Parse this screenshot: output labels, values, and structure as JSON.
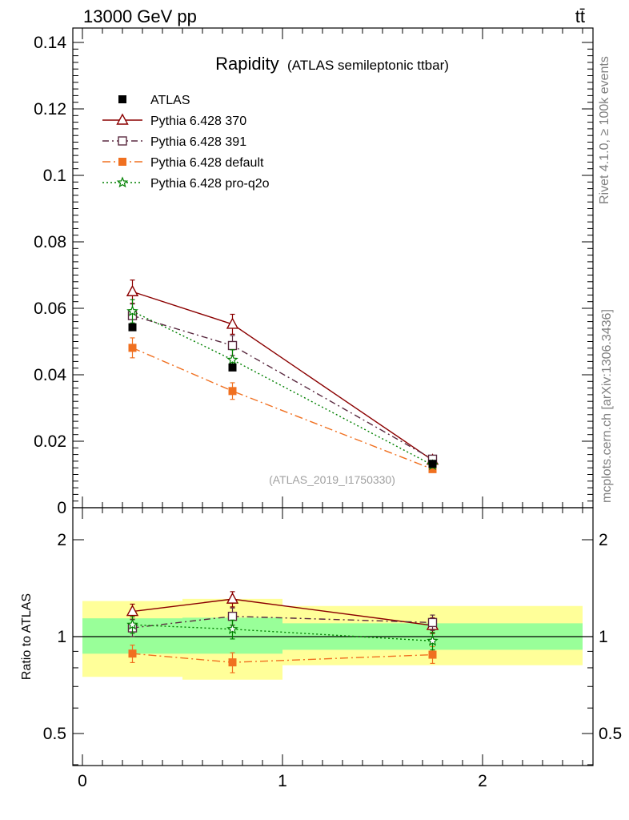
{
  "header": {
    "energy_label": "13000 GeV pp",
    "process_label": "tt̄"
  },
  "side_labels": {
    "rivet": "Rivet 4.1.0, ≥ 100k events",
    "mcplots": "mcplots.cern.ch [arXiv:1306.3436]"
  },
  "chart_data": {
    "type": "scatter",
    "title": "Rapidity",
    "subtitle": "(ATLAS semileptonic ttbar)",
    "analysis_id": "(ATLAS_2019_I1750330)",
    "xlim": [
      0,
      2.55
    ],
    "x_ticks": [
      "0",
      "1",
      "2"
    ],
    "main": {
      "ylim": [
        0,
        0.14
      ],
      "y_ticks": [
        "0",
        "0.02",
        "0.04",
        "0.06",
        "0.08",
        "0.1",
        "0.12",
        "0.14"
      ],
      "ylabel": ""
    },
    "ratio": {
      "ylabel": "Ratio to ATLAS",
      "y_ticks": [
        "0.5",
        "1",
        "2"
      ]
    },
    "bins": [
      {
        "lo": 0,
        "hi": 0.5,
        "x": 0.25
      },
      {
        "lo": 0.5,
        "hi": 1.0,
        "x": 0.75
      },
      {
        "lo": 1.0,
        "hi": 2.5,
        "x": 1.75
      }
    ],
    "data": {
      "name": "ATLAS",
      "values": [
        0.0543,
        0.0422,
        0.0132
      ],
      "band_inner": [
        [
          0.885,
          1.14
        ],
        [
          0.885,
          1.145
        ],
        [
          0.91,
          1.1
        ]
      ],
      "band_outer": [
        [
          0.75,
          1.29
        ],
        [
          0.735,
          1.31
        ],
        [
          0.815,
          1.245
        ]
      ]
    },
    "series": [
      {
        "name": "Pythia 6.428 370",
        "color": "#8b0000",
        "dash": "",
        "marker": "open-triangle",
        "values": [
          0.065,
          0.0552,
          0.0143
        ],
        "errors": [
          0.0035,
          0.003,
          0.0008
        ]
      },
      {
        "name": "Pythia 6.428 391",
        "color": "#5a2a40",
        "dash": "8 4 2 4",
        "marker": "open-square",
        "values": [
          0.0578,
          0.0488,
          0.0146
        ],
        "errors": [
          0.0035,
          0.003,
          0.0008
        ]
      },
      {
        "name": "Pythia 6.428 default",
        "color": "#f07020",
        "dash": "10 4 2 4",
        "marker": "filled-square",
        "values": [
          0.0481,
          0.0351,
          0.0116
        ],
        "errors": [
          0.003,
          0.0025,
          0.0007
        ]
      },
      {
        "name": "Pythia 6.428 pro-q2o",
        "color": "#008000",
        "dash": "2 3",
        "marker": "open-star",
        "values": [
          0.0591,
          0.0445,
          0.0128
        ],
        "errors": [
          0.0035,
          0.003,
          0.0008
        ]
      }
    ],
    "legend": [
      {
        "label": "ATLAS",
        "color": "#000000",
        "marker": "filled-square",
        "dash": "none"
      },
      {
        "label": "Pythia 6.428 370",
        "color": "#8b0000",
        "marker": "open-triangle",
        "dash": ""
      },
      {
        "label": "Pythia 6.428 391",
        "color": "#5a2a40",
        "marker": "open-square",
        "dash": "8 4 2 4"
      },
      {
        "label": "Pythia 6.428 default",
        "color": "#f07020",
        "marker": "filled-square",
        "dash": "10 4 2 4"
      },
      {
        "label": "Pythia 6.428 pro-q2o",
        "color": "#008000",
        "marker": "open-star",
        "dash": "2 3"
      }
    ],
    "band_colors": {
      "inner": "#99ff99",
      "outer": "#ffff99"
    }
  }
}
